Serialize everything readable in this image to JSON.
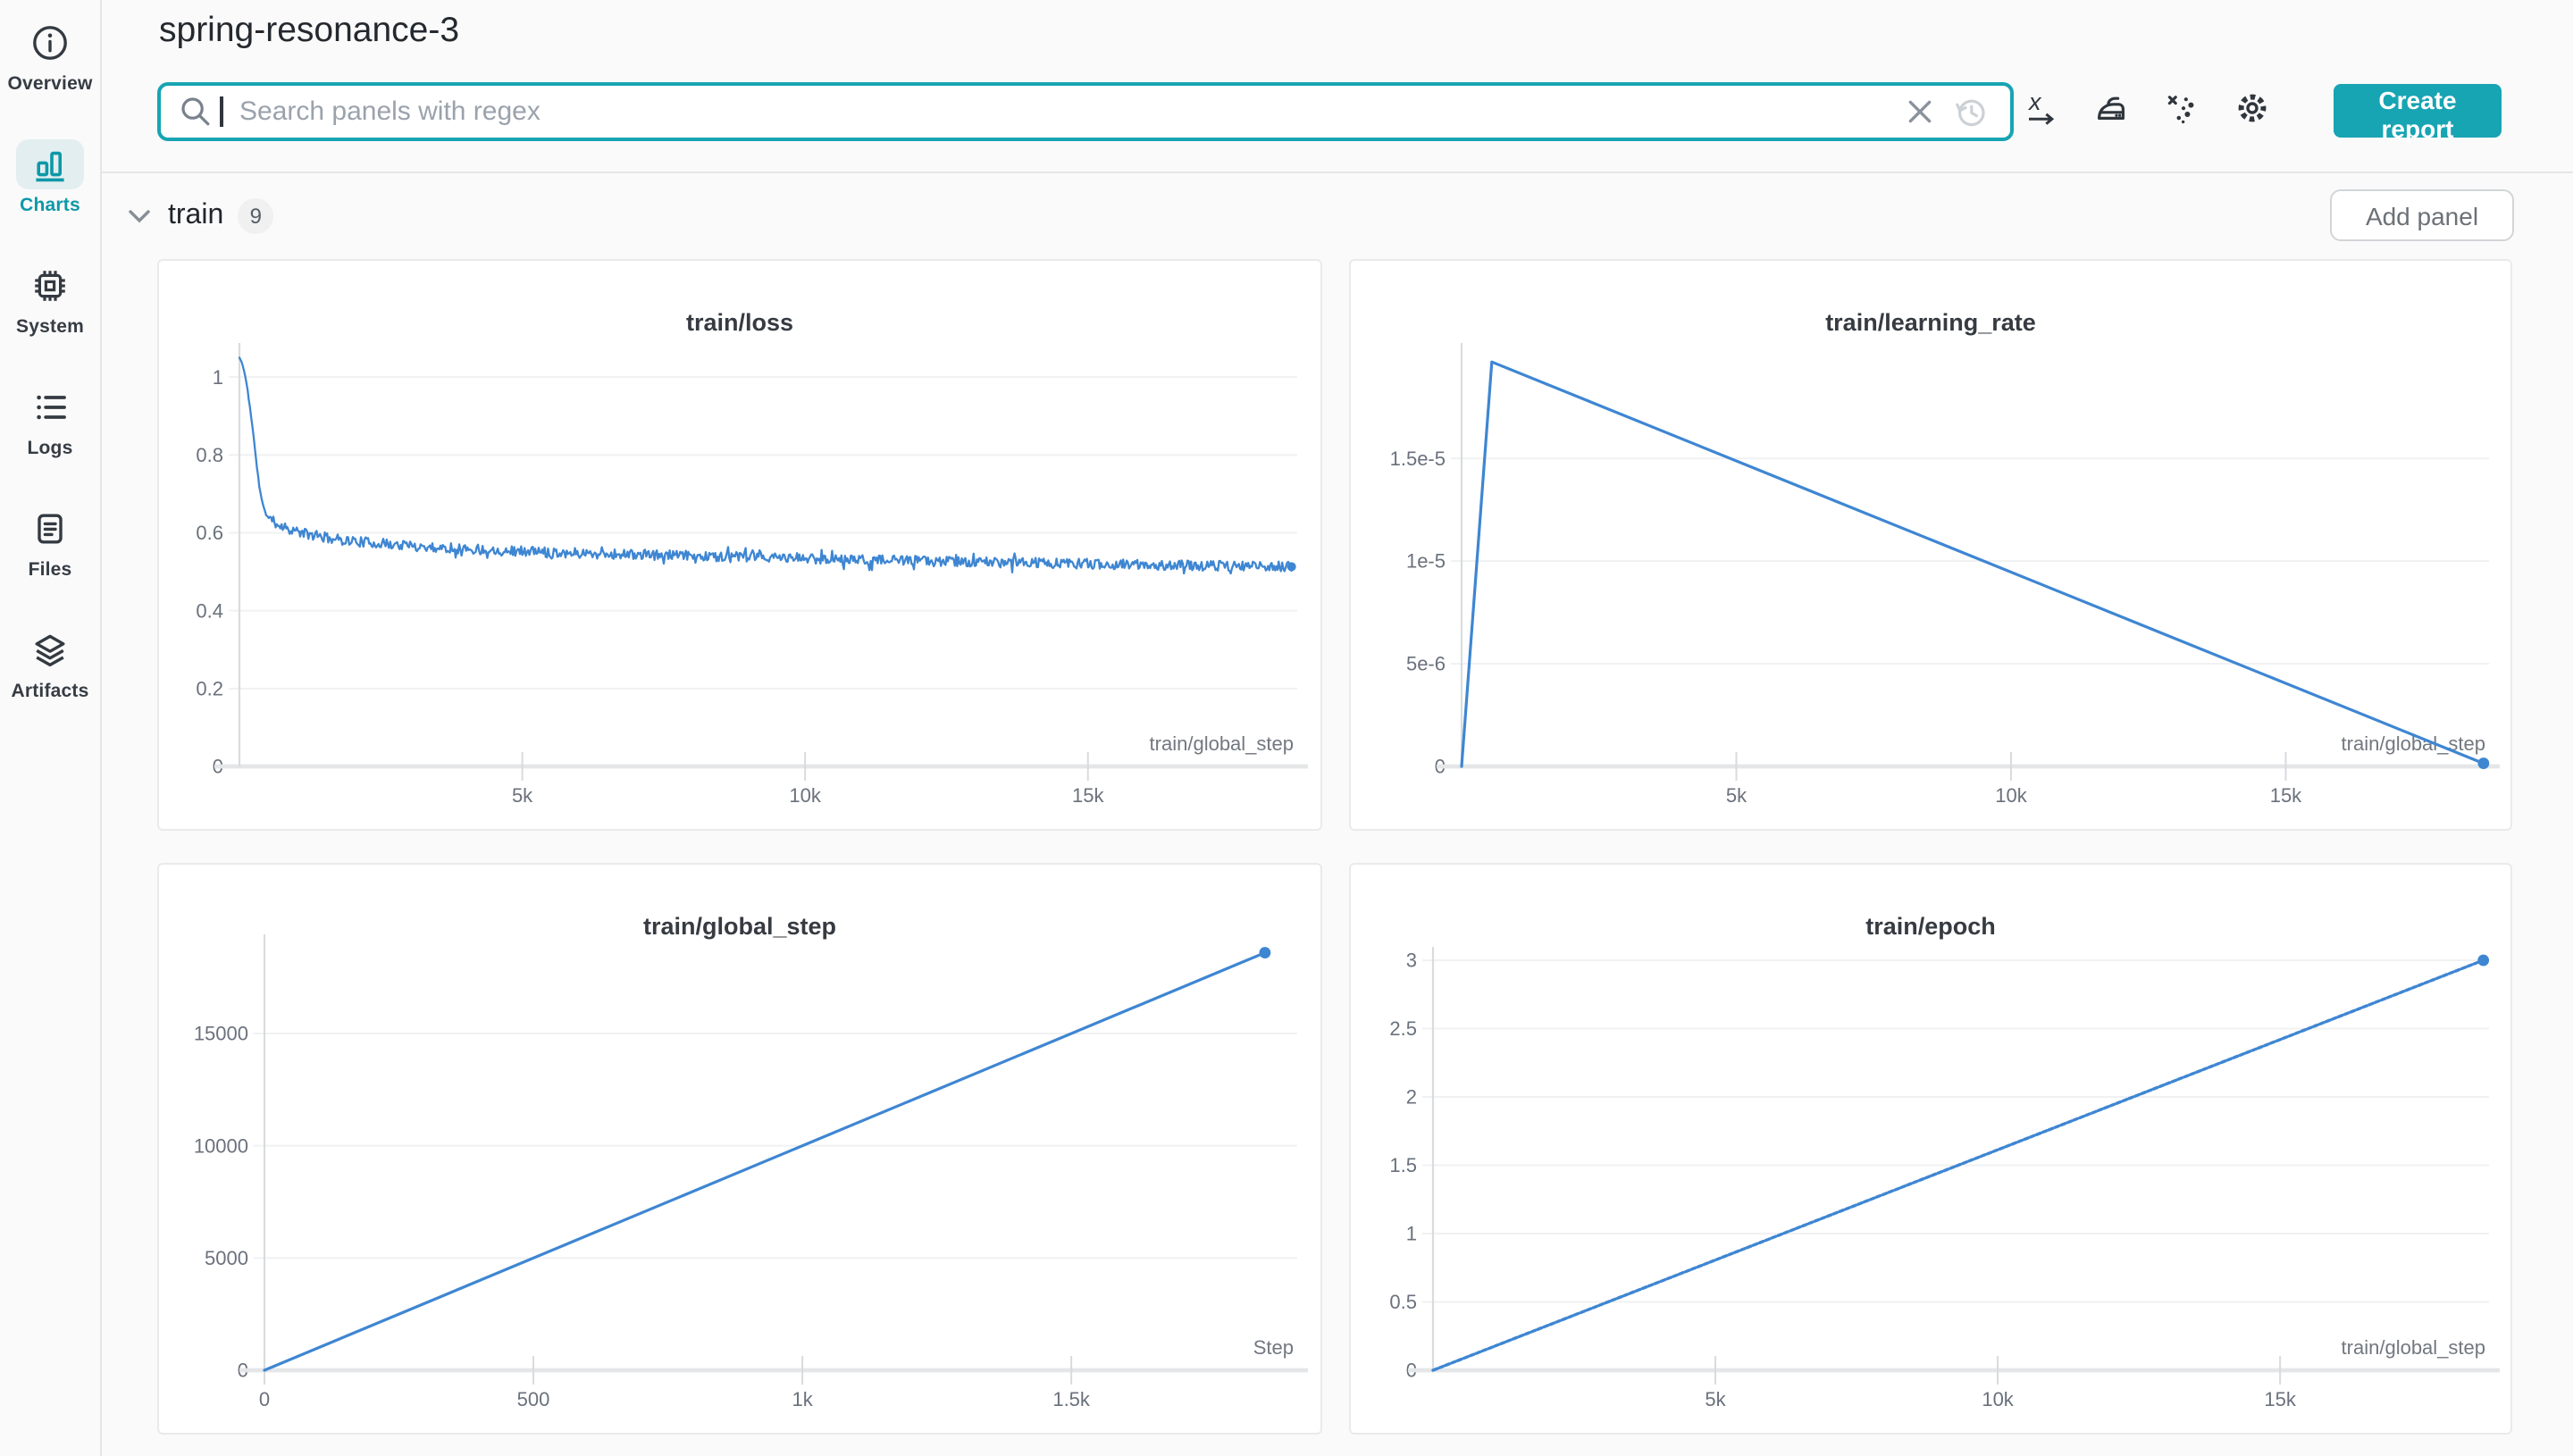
{
  "app": {
    "title": "spring-resonance-3"
  },
  "sidebar": {
    "items": [
      {
        "label": "Overview",
        "icon": "info-icon",
        "active": false
      },
      {
        "label": "Charts",
        "icon": "bar-chart-icon",
        "active": true
      },
      {
        "label": "System",
        "icon": "chip-icon",
        "active": false
      },
      {
        "label": "Logs",
        "icon": "list-icon",
        "active": false
      },
      {
        "label": "Files",
        "icon": "document-icon",
        "active": false
      },
      {
        "label": "Artifacts",
        "icon": "layers-icon",
        "active": false
      }
    ]
  },
  "toolbar": {
    "search": {
      "placeholder": "Search panels with regex",
      "value": ""
    },
    "create_report_label": "Create report"
  },
  "section": {
    "title": "train",
    "panel_count": "9",
    "add_panel_label": "Add panel"
  },
  "colors": {
    "accent_teal": "#17a4b3",
    "line_blue": "#3e86d2",
    "charts_active": "#0e98a8"
  },
  "chart_data": [
    {
      "type": "line",
      "title": "train/loss",
      "xlabel": "train/global_step",
      "xlim": [
        0,
        18700
      ],
      "ylim": [
        0,
        1.06
      ],
      "x_ticks": [
        {
          "v": 5000,
          "label": "5k"
        },
        {
          "v": 10000,
          "label": "10k"
        },
        {
          "v": 15000,
          "label": "15k"
        }
      ],
      "y_ticks": [
        {
          "v": 0,
          "label": "0"
        },
        {
          "v": 0.2,
          "label": "0.2"
        },
        {
          "v": 0.4,
          "label": "0.4"
        },
        {
          "v": 0.6,
          "label": "0.6"
        },
        {
          "v": 0.8,
          "label": "0.8"
        },
        {
          "v": 1,
          "label": "1"
        }
      ],
      "series": [
        {
          "name": "train/loss",
          "keypoints": [
            [
              0,
              1.05
            ],
            [
              60,
              1.03
            ],
            [
              120,
              0.99
            ],
            [
              180,
              0.93
            ],
            [
              240,
              0.86
            ],
            [
              300,
              0.78
            ],
            [
              360,
              0.71
            ],
            [
              420,
              0.668
            ],
            [
              480,
              0.645
            ],
            [
              550,
              0.633
            ],
            [
              650,
              0.625
            ],
            [
              800,
              0.615
            ],
            [
              1000,
              0.604
            ],
            [
              1300,
              0.593
            ],
            [
              1700,
              0.584
            ],
            [
              2200,
              0.576
            ],
            [
              2800,
              0.569
            ],
            [
              3500,
              0.562
            ],
            [
              4300,
              0.557
            ],
            [
              5200,
              0.552
            ],
            [
              6200,
              0.547
            ],
            [
              7300,
              0.543
            ],
            [
              8500,
              0.539
            ],
            [
              9800,
              0.535
            ],
            [
              11200,
              0.53
            ],
            [
              12600,
              0.526
            ],
            [
              14000,
              0.523
            ],
            [
              15400,
              0.519
            ],
            [
              16800,
              0.516
            ],
            [
              18000,
              0.514
            ],
            [
              18600,
              0.513
            ]
          ],
          "noise": 0.013,
          "noise_start": 520,
          "samples": 900,
          "seed": 11
        }
      ],
      "end_dot": [
        18600,
        0.513
      ]
    },
    {
      "type": "line",
      "title": "train/learning_rate",
      "xlabel": "train/global_step",
      "xlim": [
        0,
        18700
      ],
      "ylim": [
        0,
        2.01e-05
      ],
      "x_ticks": [
        {
          "v": 5000,
          "label": "5k"
        },
        {
          "v": 10000,
          "label": "10k"
        },
        {
          "v": 15000,
          "label": "15k"
        }
      ],
      "y_ticks": [
        {
          "v": 0,
          "label": "0"
        },
        {
          "v": 5e-06,
          "label": "5e-6"
        },
        {
          "v": 1e-05,
          "label": "1e-5"
        },
        {
          "v": 1.5e-05,
          "label": "1.5e-5"
        }
      ],
      "series": [
        {
          "name": "train/learning_rate",
          "keypoints": [
            [
              0,
              0
            ],
            [
              550,
              1.97e-05
            ],
            [
              18600,
              1.5e-07
            ]
          ]
        }
      ],
      "end_dot": [
        18600,
        1.5e-07
      ]
    },
    {
      "type": "line",
      "title": "train/global_step",
      "xlabel": "Step",
      "xlim": [
        0,
        1920
      ],
      "ylim": [
        0,
        18940
      ],
      "x_ticks": [
        {
          "v": 0,
          "label": "0"
        },
        {
          "v": 500,
          "label": "500"
        },
        {
          "v": 1000,
          "label": "1k"
        },
        {
          "v": 1500,
          "label": "1.5k"
        }
      ],
      "y_ticks": [
        {
          "v": 0,
          "label": "0"
        },
        {
          "v": 5000,
          "label": "5000"
        },
        {
          "v": 10000,
          "label": "10000"
        },
        {
          "v": 15000,
          "label": "15000"
        }
      ],
      "series": [
        {
          "name": "train/global_step",
          "keypoints": [
            [
              0,
              0
            ],
            [
              1860,
              18600
            ]
          ]
        }
      ],
      "end_dot": [
        1860,
        18600
      ]
    },
    {
      "type": "line",
      "title": "train/epoch",
      "xlabel": "train/global_step",
      "xlim": [
        0,
        18700
      ],
      "ylim": [
        0,
        3.02
      ],
      "x_ticks": [
        {
          "v": 5000,
          "label": "5k"
        },
        {
          "v": 10000,
          "label": "10k"
        },
        {
          "v": 15000,
          "label": "15k"
        }
      ],
      "y_ticks": [
        {
          "v": 0,
          "label": "0"
        },
        {
          "v": 0.5,
          "label": "0.5"
        },
        {
          "v": 1,
          "label": "1"
        },
        {
          "v": 1.5,
          "label": "1.5"
        },
        {
          "v": 2,
          "label": "2"
        },
        {
          "v": 2.5,
          "label": "2.5"
        },
        {
          "v": 3,
          "label": "3"
        }
      ],
      "series": [
        {
          "name": "train/epoch",
          "keypoints": [
            [
              0,
              0
            ],
            [
              18600,
              3
            ]
          ]
        }
      ],
      "end_dot": [
        18600,
        3
      ]
    }
  ]
}
